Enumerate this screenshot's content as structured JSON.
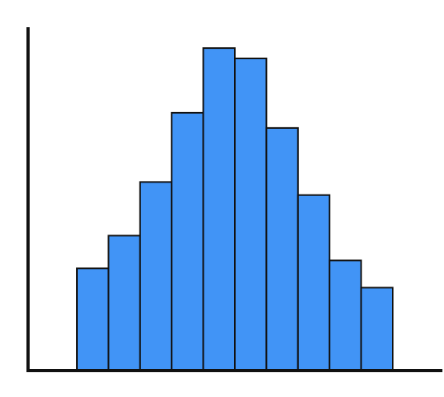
{
  "chart_data": {
    "type": "bar",
    "bar_color": "#4194F6",
    "outline_color": "#111111",
    "axis_color": "#111111",
    "grid": false,
    "title": "",
    "xlabel": "",
    "ylabel": "",
    "ylim": [
      0,
      100
    ],
    "values": [
      29.7,
      39.2,
      54.8,
      74.9,
      93.7,
      90.7,
      70.5,
      51.0,
      32.0,
      24.1
    ]
  }
}
